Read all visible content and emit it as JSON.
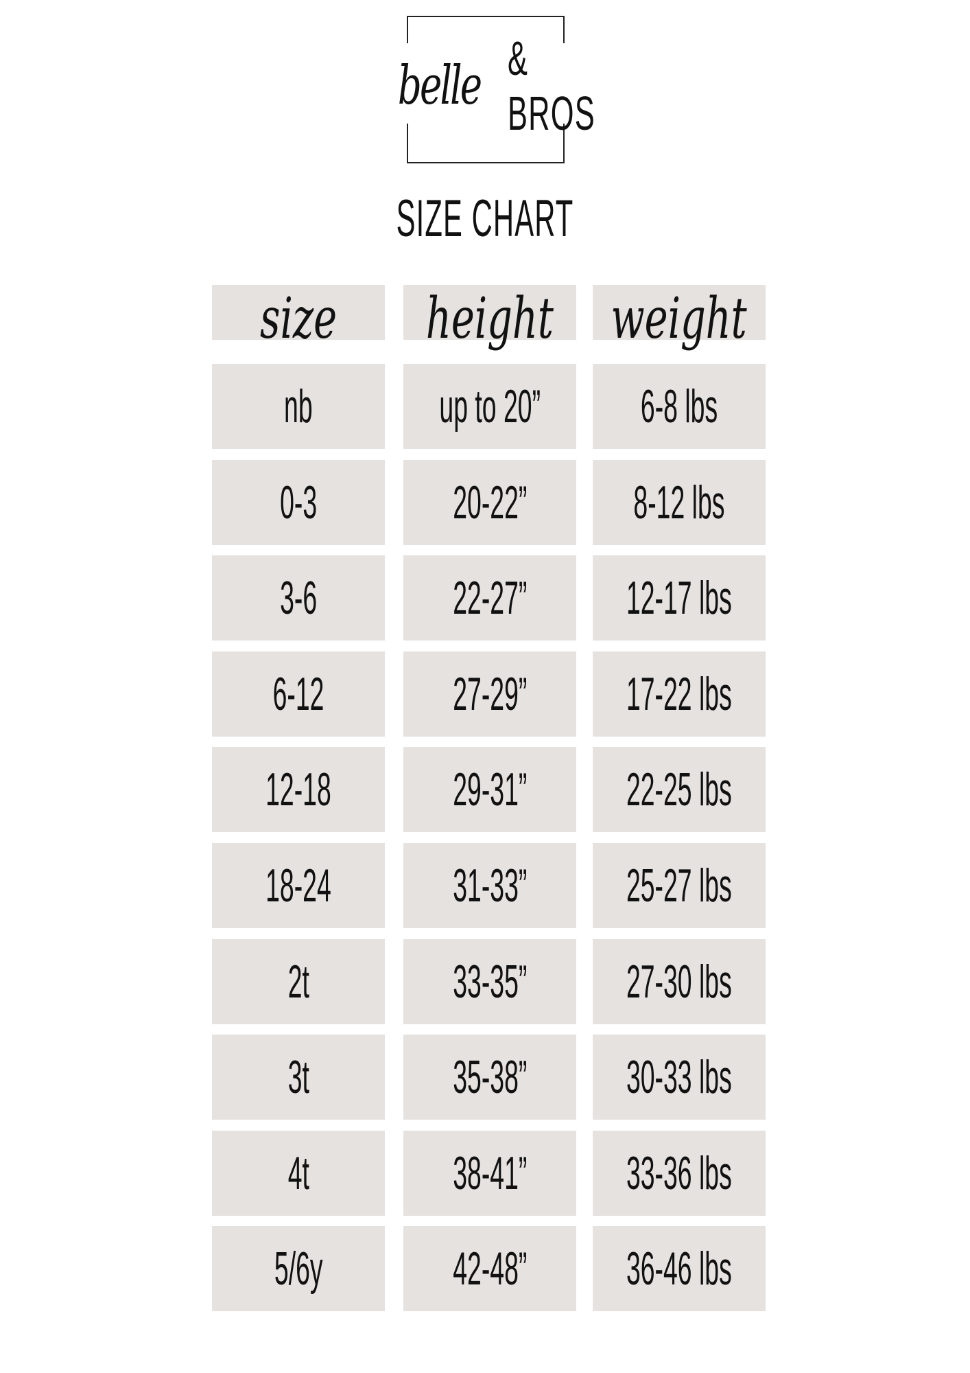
{
  "logo": {
    "script": "belle",
    "rest": "& BROS"
  },
  "title": "SIZE CHART",
  "columns": [
    "size",
    "height",
    "weight"
  ],
  "rows": [
    [
      "nb",
      "up to 20”",
      "6-8 lbs"
    ],
    [
      "0-3",
      "20-22”",
      "8-12 lbs"
    ],
    [
      "3-6",
      "22-27”",
      "12-17 lbs"
    ],
    [
      "6-12",
      "27-29”",
      "17-22 lbs"
    ],
    [
      "12-18",
      "29-31”",
      "22-25 lbs"
    ],
    [
      "18-24",
      "31-33”",
      "25-27 lbs"
    ],
    [
      "2t",
      "33-35”",
      "27-30 lbs"
    ],
    [
      "3t",
      "35-38”",
      "30-33 lbs"
    ],
    [
      "4t",
      "38-41”",
      "33-36 lbs"
    ],
    [
      "5/6y",
      "42-48”",
      "36-46 lbs"
    ]
  ],
  "colors": {
    "cell": "#e5e2df",
    "text": "#111111"
  }
}
